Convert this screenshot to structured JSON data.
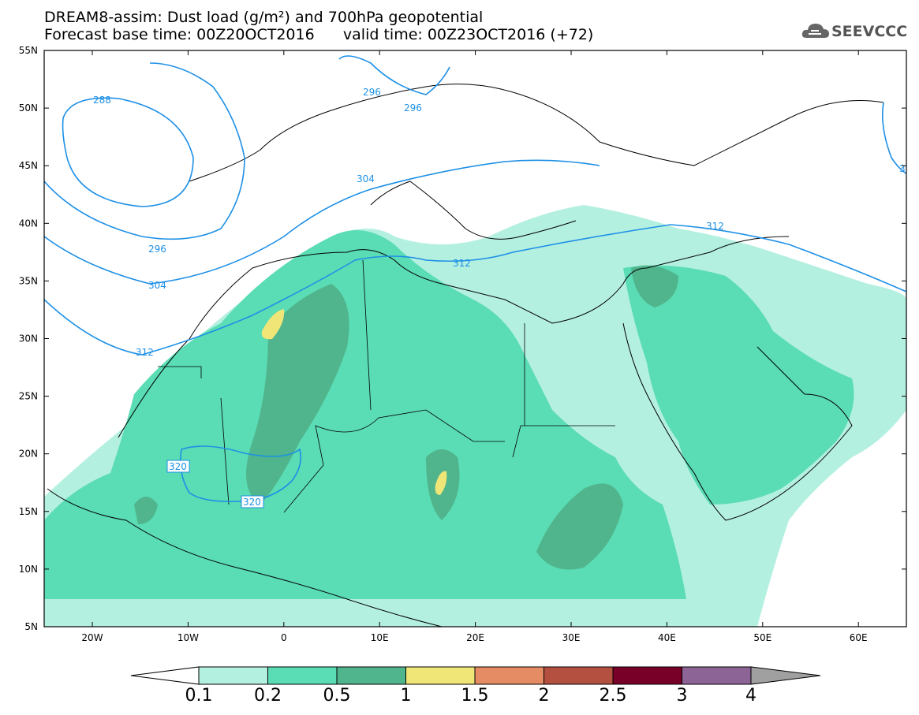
{
  "title_line1": "DREAM8-assim: Dust load (g/m²) and 700hPa geopotential",
  "title_line2": "Forecast base time: 00Z20OCT2016      valid time: 00Z23OCT2016 (+72)",
  "logo_text": "SEEVCCC",
  "lat_ticks": [
    "55N",
    "50N",
    "45N",
    "40N",
    "35N",
    "30N",
    "25N",
    "20N",
    "15N",
    "10N",
    "5N"
  ],
  "lon_ticks": [
    "20W",
    "10W",
    "0",
    "10E",
    "20E",
    "30E",
    "40E",
    "50E",
    "60E"
  ],
  "contour_labels": [
    "288",
    "296",
    "296",
    "304",
    "296",
    "304",
    "312",
    "312",
    "312",
    "320",
    "320",
    "312",
    "3"
  ],
  "colorbar": {
    "labels": [
      "0.1",
      "0.2",
      "0.5",
      "1",
      "1.5",
      "2",
      "2.5",
      "3",
      "4"
    ],
    "colors": [
      "#b4f0e0",
      "#5adcb4",
      "#50b48c",
      "#f0e678",
      "#e68c64",
      "#b45040",
      "#780028",
      "#8c6496",
      "#a0a0a0"
    ]
  }
}
